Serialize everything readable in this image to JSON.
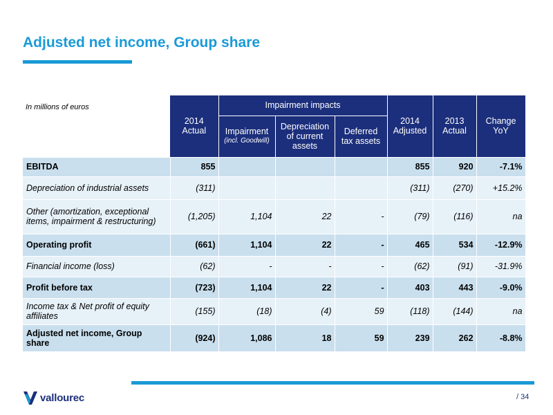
{
  "title": "Adjusted net income, Group share",
  "table": {
    "units": "In millions of euros",
    "group_header": "Impairment impacts",
    "col_2014_actual": "2014\nActual",
    "col_impairment": "Impairment",
    "col_impairment_note": "(incl. Goodwill)",
    "col_depreciation": "Depreciation of current assets",
    "col_deferred": "Deferred tax assets",
    "col_2014_adjusted": "2014\nAdjusted",
    "col_2013_actual": "2013\nActual",
    "col_change": "Change\nYoY",
    "rows": [
      {
        "label": "EBITDA",
        "actual": "855",
        "impairment": "",
        "depreciation": "",
        "deferred": "",
        "adjusted": "855",
        "prev": "920",
        "change": "-7.1%"
      },
      {
        "label": "Depreciation of industrial assets",
        "actual": "(311)",
        "impairment": "",
        "depreciation": "",
        "deferred": "",
        "adjusted": "(311)",
        "prev": "(270)",
        "change": "+15.2%"
      },
      {
        "label": "Other (amortization, exceptional items, impairment & restructuring)",
        "actual": "(1,205)",
        "impairment": "1,104",
        "depreciation": "22",
        "deferred": "-",
        "adjusted": "(79)",
        "prev": "(116)",
        "change": "na"
      },
      {
        "label": "Operating profit",
        "actual": "(661)",
        "impairment": "1,104",
        "depreciation": "22",
        "deferred": "-",
        "adjusted": "465",
        "prev": "534",
        "change": "-12.9%"
      },
      {
        "label": "Financial income (loss)",
        "actual": "(62)",
        "impairment": "-",
        "depreciation": "-",
        "deferred": "-",
        "adjusted": "(62)",
        "prev": "(91)",
        "change": "-31.9%"
      },
      {
        "label": "Profit before tax",
        "actual": "(723)",
        "impairment": "1,104",
        "depreciation": "22",
        "deferred": "-",
        "adjusted": "403",
        "prev": "443",
        "change": "-9.0%"
      },
      {
        "label": "Income tax & Net profit of equity affiliates",
        "actual": "(155)",
        "impairment": "(18)",
        "depreciation": "(4)",
        "deferred": "59",
        "adjusted": "(118)",
        "prev": "(144)",
        "change": "na"
      },
      {
        "label": "Adjusted net income, Group share",
        "actual": "(924)",
        "impairment": "1,086",
        "depreciation": "18",
        "deferred": "59",
        "adjusted": "239",
        "prev": "262",
        "change": "-8.8%"
      }
    ]
  },
  "footer": {
    "logo_text": "vallourec",
    "page_number": "/ 34"
  },
  "colors": {
    "accent": "#1a9ad6",
    "header_bg": "#1c2f7c",
    "bold_row_bg": "#c9dfee",
    "italic_row_bg": "#e7f1f8"
  }
}
